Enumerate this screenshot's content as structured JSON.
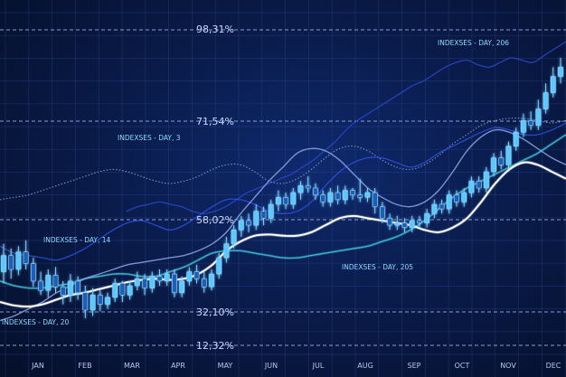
{
  "chart_data": {
    "type": "line",
    "months": [
      "JAN",
      "FEB",
      "MAR",
      "APR",
      "MAY",
      "JUN",
      "JUL",
      "AUG",
      "SEP",
      "OCT",
      "NOV",
      "DEC"
    ],
    "percent_labels": [
      "98,31%",
      "71,54%",
      "58,02%",
      "32,10%",
      "12,32%"
    ],
    "annotations": [
      "INDEXSES - DAY, 206",
      "INDEXSES - DAY, 3",
      "INDEXSES - DAY, 14",
      "INDEXSES - DAY, 205",
      "INDEXSES - DAY, 20"
    ],
    "candles": [
      {
        "o": 4.8,
        "c": 6.2,
        "h": 7.2,
        "l": 3.8
      },
      {
        "o": 6.2,
        "c": 5.0,
        "h": 6.8,
        "l": 4.2
      },
      {
        "o": 5.0,
        "c": 6.5,
        "h": 7.0,
        "l": 4.5
      },
      {
        "o": 6.5,
        "c": 5.5,
        "h": 7.5,
        "l": 5.0
      },
      {
        "o": 5.5,
        "c": 4.0,
        "h": 6.0,
        "l": 3.5
      },
      {
        "o": 4.0,
        "c": 3.2,
        "h": 4.8,
        "l": 2.8
      },
      {
        "o": 3.2,
        "c": 4.5,
        "h": 5.0,
        "l": 2.6
      },
      {
        "o": 4.5,
        "c": 3.5,
        "h": 5.2,
        "l": 3.0
      },
      {
        "o": 3.5,
        "c": 2.8,
        "h": 4.0,
        "l": 2.0
      },
      {
        "o": 2.8,
        "c": 4.0,
        "h": 4.6,
        "l": 2.2
      },
      {
        "o": 4.0,
        "c": 3.0,
        "h": 4.4,
        "l": 2.4
      },
      {
        "o": 3.0,
        "c": 1.5,
        "h": 3.6,
        "l": 0.8
      },
      {
        "o": 1.5,
        "c": 2.8,
        "h": 3.4,
        "l": 1.0
      },
      {
        "o": 2.8,
        "c": 2.0,
        "h": 3.2,
        "l": 1.4
      },
      {
        "o": 2.0,
        "c": 2.6,
        "h": 3.0,
        "l": 1.6
      },
      {
        "o": 2.6,
        "c": 3.8,
        "h": 4.2,
        "l": 2.2
      },
      {
        "o": 3.8,
        "c": 2.8,
        "h": 4.0,
        "l": 2.2
      },
      {
        "o": 2.8,
        "c": 3.6,
        "h": 4.0,
        "l": 2.4
      },
      {
        "o": 3.6,
        "c": 4.2,
        "h": 4.8,
        "l": 3.2
      },
      {
        "o": 4.2,
        "c": 3.4,
        "h": 4.6,
        "l": 2.8
      },
      {
        "o": 3.4,
        "c": 4.4,
        "h": 4.8,
        "l": 3.0
      },
      {
        "o": 4.4,
        "c": 4.0,
        "h": 5.0,
        "l": 3.6
      },
      {
        "o": 4.0,
        "c": 4.6,
        "h": 5.0,
        "l": 3.6
      },
      {
        "o": 4.6,
        "c": 3.0,
        "h": 5.0,
        "l": 2.6
      },
      {
        "o": 3.0,
        "c": 4.0,
        "h": 4.4,
        "l": 2.6
      },
      {
        "o": 4.0,
        "c": 4.8,
        "h": 5.2,
        "l": 3.6
      },
      {
        "o": 4.8,
        "c": 4.2,
        "h": 5.4,
        "l": 3.8
      },
      {
        "o": 4.2,
        "c": 3.5,
        "h": 4.8,
        "l": 3.0
      },
      {
        "o": 3.5,
        "c": 4.6,
        "h": 5.0,
        "l": 3.2
      },
      {
        "o": 4.6,
        "c": 6.0,
        "h": 6.4,
        "l": 4.2
      },
      {
        "o": 6.0,
        "c": 7.2,
        "h": 7.8,
        "l": 5.6
      },
      {
        "o": 7.2,
        "c": 8.4,
        "h": 8.8,
        "l": 6.8
      },
      {
        "o": 8.4,
        "c": 9.2,
        "h": 9.6,
        "l": 7.8
      },
      {
        "o": 9.2,
        "c": 8.8,
        "h": 9.8,
        "l": 8.2
      },
      {
        "o": 8.8,
        "c": 10.0,
        "h": 10.6,
        "l": 8.4
      },
      {
        "o": 10.0,
        "c": 9.4,
        "h": 10.4,
        "l": 8.8
      },
      {
        "o": 9.4,
        "c": 10.6,
        "h": 11.0,
        "l": 9.0
      },
      {
        "o": 10.6,
        "c": 11.2,
        "h": 11.8,
        "l": 10.0
      },
      {
        "o": 11.2,
        "c": 10.6,
        "h": 11.6,
        "l": 10.2
      },
      {
        "o": 10.6,
        "c": 11.6,
        "h": 12.0,
        "l": 10.2
      },
      {
        "o": 11.6,
        "c": 12.2,
        "h": 12.6,
        "l": 11.0
      },
      {
        "o": 12.2,
        "c": 12.0,
        "h": 13.0,
        "l": 11.6
      },
      {
        "o": 12.0,
        "c": 11.4,
        "h": 12.4,
        "l": 11.0
      },
      {
        "o": 11.4,
        "c": 10.8,
        "h": 11.8,
        "l": 10.4
      },
      {
        "o": 10.8,
        "c": 11.6,
        "h": 12.0,
        "l": 10.4
      },
      {
        "o": 11.6,
        "c": 11.0,
        "h": 12.2,
        "l": 10.6
      },
      {
        "o": 11.0,
        "c": 11.8,
        "h": 12.2,
        "l": 10.6
      },
      {
        "o": 11.8,
        "c": 11.4,
        "h": 12.0,
        "l": 11.0
      },
      {
        "o": 11.4,
        "c": 11.2,
        "h": 12.8,
        "l": 10.8
      },
      {
        "o": 11.2,
        "c": 11.6,
        "h": 12.0,
        "l": 10.8
      },
      {
        "o": 11.6,
        "c": 10.4,
        "h": 12.0,
        "l": 9.8
      },
      {
        "o": 10.4,
        "c": 9.4,
        "h": 10.8,
        "l": 9.0
      },
      {
        "o": 9.4,
        "c": 8.8,
        "h": 9.8,
        "l": 8.4
      },
      {
        "o": 8.8,
        "c": 9.0,
        "h": 9.6,
        "l": 8.4
      },
      {
        "o": 9.0,
        "c": 8.6,
        "h": 9.4,
        "l": 8.2
      },
      {
        "o": 8.6,
        "c": 9.2,
        "h": 9.6,
        "l": 8.2
      },
      {
        "o": 9.2,
        "c": 9.0,
        "h": 9.6,
        "l": 8.6
      },
      {
        "o": 9.0,
        "c": 9.8,
        "h": 10.2,
        "l": 8.6
      },
      {
        "o": 9.8,
        "c": 10.6,
        "h": 11.0,
        "l": 9.4
      },
      {
        "o": 10.6,
        "c": 10.2,
        "h": 11.0,
        "l": 9.8
      },
      {
        "o": 10.2,
        "c": 11.4,
        "h": 11.8,
        "l": 9.8
      },
      {
        "o": 11.4,
        "c": 10.8,
        "h": 11.8,
        "l": 10.4
      },
      {
        "o": 10.8,
        "c": 11.6,
        "h": 12.0,
        "l": 10.4
      },
      {
        "o": 11.6,
        "c": 12.6,
        "h": 13.0,
        "l": 11.2
      },
      {
        "o": 12.6,
        "c": 12.0,
        "h": 13.0,
        "l": 11.6
      },
      {
        "o": 12.0,
        "c": 13.4,
        "h": 13.8,
        "l": 11.6
      },
      {
        "o": 13.4,
        "c": 14.6,
        "h": 15.0,
        "l": 13.0
      },
      {
        "o": 14.6,
        "c": 14.0,
        "h": 15.2,
        "l": 13.6
      },
      {
        "o": 14.0,
        "c": 15.6,
        "h": 16.0,
        "l": 13.6
      },
      {
        "o": 15.6,
        "c": 16.8,
        "h": 17.2,
        "l": 15.2
      },
      {
        "o": 16.8,
        "c": 17.8,
        "h": 18.4,
        "l": 16.4
      },
      {
        "o": 17.8,
        "c": 17.4,
        "h": 18.6,
        "l": 17.0
      },
      {
        "o": 17.4,
        "c": 18.8,
        "h": 19.6,
        "l": 17.0
      },
      {
        "o": 18.8,
        "c": 20.2,
        "h": 21.0,
        "l": 18.4
      },
      {
        "o": 20.2,
        "c": 21.6,
        "h": 22.4,
        "l": 19.8
      },
      {
        "o": 21.6,
        "c": 22.4,
        "h": 23.2,
        "l": 21.0
      }
    ],
    "moving_average": [
      2.2,
      1.9,
      1.8,
      2.0,
      2.4,
      2.8,
      3.0,
      3.3,
      3.6,
      3.9,
      4.1,
      4.2,
      4.1,
      4.2,
      4.6,
      5.4,
      6.6,
      7.4,
      7.9,
      8.0,
      7.9,
      7.9,
      8.2,
      8.8,
      9.4,
      9.6,
      9.4,
      9.2,
      9.0,
      8.8,
      8.4,
      8.2,
      8.6,
      9.4,
      10.8,
      12.4,
      13.6,
      14.2,
      14.0,
      13.4,
      12.8
    ],
    "series_glow": [
      0.6,
      1.0,
      1.6,
      2.2,
      3.0,
      3.6,
      4.2,
      4.6,
      5.0,
      5.4,
      5.6,
      5.8,
      6.0,
      6.2,
      6.6,
      7.2,
      8.2,
      9.8,
      11.2,
      12.6,
      13.8,
      15.0,
      15.4,
      15.2,
      14.4,
      13.2,
      12.0,
      11.2,
      10.6,
      10.4,
      10.8,
      11.8,
      13.4,
      15.2,
      16.4,
      17.0,
      16.8,
      16.2,
      15.4,
      14.6,
      14.0
    ],
    "series_dark": [
      7.0,
      6.4,
      6.2,
      6.0,
      5.8,
      6.2,
      6.8,
      7.6,
      8.4,
      9.0,
      9.2,
      8.8,
      8.4,
      8.8,
      9.6,
      10.4,
      11.0,
      11.0,
      10.6,
      10.0,
      9.8,
      10.0,
      10.8,
      12.2,
      13.4,
      14.2,
      14.6,
      14.6,
      14.2,
      13.8,
      14.2,
      15.0,
      15.6,
      16.2,
      16.8,
      17.2,
      17.0,
      16.6,
      16.6,
      17.0,
      17.6
    ],
    "series_dotted": [
      11.0,
      11.2,
      11.4,
      11.8,
      12.2,
      12.6,
      13.0,
      13.4,
      13.6,
      13.4,
      13.0,
      12.6,
      12.4,
      12.6,
      13.0,
      13.6,
      14.0,
      14.0,
      13.4,
      12.6,
      12.4,
      12.8,
      13.6,
      14.6,
      15.4,
      15.6,
      15.2,
      14.4,
      13.8,
      13.6,
      14.0,
      14.8,
      15.8,
      16.6,
      17.4,
      17.8,
      18.0,
      18.0,
      17.8,
      17.6,
      17.8
    ],
    "series_teal": [
      4.0,
      3.6,
      3.4,
      3.4,
      3.6,
      3.8,
      4.2,
      4.4,
      4.6,
      4.6,
      4.4,
      4.4,
      4.8,
      5.2,
      5.8,
      6.4,
      6.6,
      6.6,
      6.4,
      6.2,
      6.0,
      6.0,
      6.2,
      6.4,
      6.6,
      6.8,
      7.0,
      7.4,
      7.8,
      8.4,
      9.2,
      10.2,
      11.2,
      12.0,
      12.6,
      13.2,
      13.8,
      14.4,
      15.0,
      15.8,
      16.6
    ],
    "series_top": [
      10.0,
      10.4,
      10.6,
      10.8,
      10.6,
      10.4,
      10.0,
      9.8,
      10.0,
      10.4,
      11.0,
      11.6,
      12.0,
      12.4,
      12.8,
      13.2,
      13.8,
      14.4,
      15.2,
      16.0,
      17.0,
      17.8,
      18.4,
      19.0,
      19.6,
      20.2,
      20.8,
      21.2,
      21.8,
      22.4,
      22.8,
      23.0,
      22.6,
      22.4,
      22.8,
      23.2,
      23.0,
      22.8,
      23.4,
      24.0,
      24.6
    ],
    "y_range": [
      -2,
      26
    ]
  }
}
